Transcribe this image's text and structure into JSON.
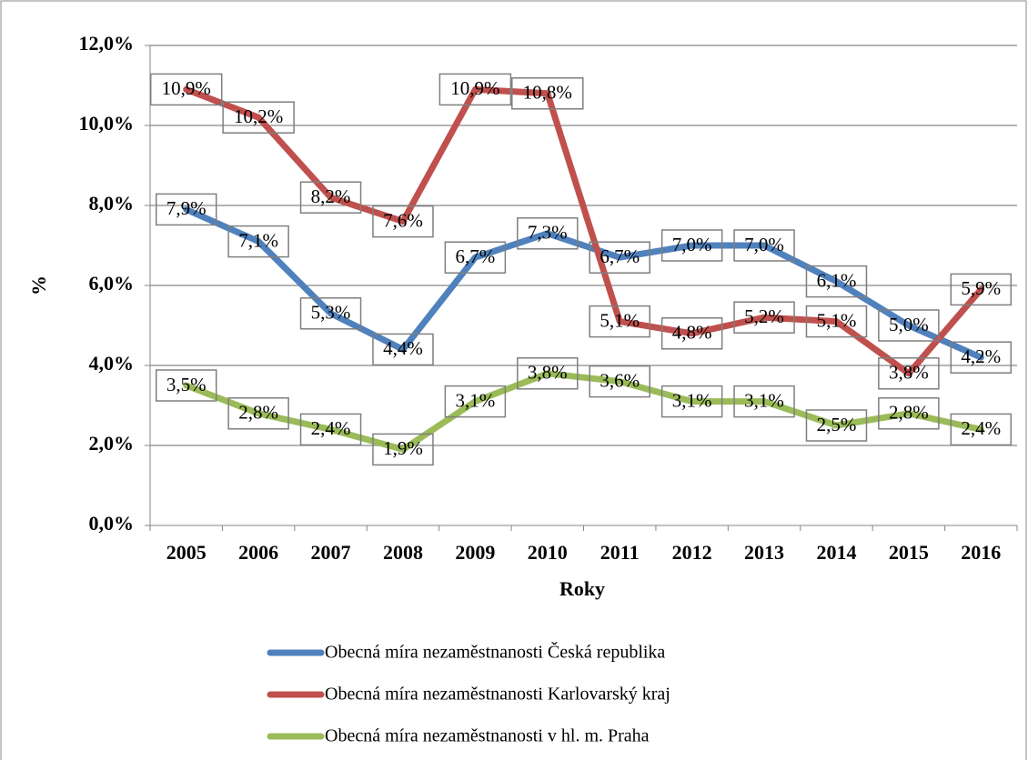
{
  "chart_data": {
    "type": "line",
    "x_label": "Roky",
    "y_label": "%",
    "categories": [
      "2005",
      "2006",
      "2007",
      "2008",
      "2009",
      "2010",
      "2011",
      "2012",
      "2013",
      "2014",
      "2015",
      "2016"
    ],
    "ylim": [
      0,
      12
    ],
    "yticks": [
      {
        "value": 0,
        "label": "0,0%"
      },
      {
        "value": 2,
        "label": "2,0%"
      },
      {
        "value": 4,
        "label": "4,0%"
      },
      {
        "value": 6,
        "label": "6,0%"
      },
      {
        "value": 8,
        "label": "8,0%"
      },
      {
        "value": 10,
        "label": "10,0%"
      },
      {
        "value": 12,
        "label": "12,0%"
      }
    ],
    "grid": true,
    "legend": "bottom",
    "series": [
      {
        "name": "Obecná míra nezaměstnanosti Česká republika",
        "color": "#4f81bd",
        "values": [
          7.9,
          7.1,
          5.3,
          4.4,
          6.7,
          7.3,
          6.7,
          7.0,
          7.0,
          6.1,
          5.0,
          4.2
        ],
        "value_labels": [
          "7,9%",
          "7,1%",
          "5,3%",
          "4,4%",
          "6,7%",
          "7,3%",
          "6,7%",
          "7,0%",
          "7,0%",
          "6,1%",
          "5,0%",
          "4,2%"
        ]
      },
      {
        "name": "Obecná míra nezaměstnanosti Karlovarský kraj",
        "color": "#c0504d",
        "values": [
          10.9,
          10.2,
          8.2,
          7.6,
          10.9,
          10.8,
          5.1,
          4.8,
          5.2,
          5.1,
          3.8,
          5.9
        ],
        "value_labels": [
          "10,9%",
          "10,2%",
          "8,2%",
          "7,6%",
          "10,9%",
          "10,8%",
          "5,1%",
          "4,8%",
          "5,2%",
          "5,1%",
          "3,8%",
          "5,9%"
        ]
      },
      {
        "name": "Obecná míra nezaměstnanosti v hl. m. Praha",
        "color": "#9bbb59",
        "values": [
          3.5,
          2.8,
          2.4,
          1.9,
          3.1,
          3.8,
          3.6,
          3.1,
          3.1,
          2.5,
          2.8,
          2.4
        ],
        "value_labels": [
          "3,5%",
          "2,8%",
          "2,4%",
          "1,9%",
          "3,1%",
          "3,8%",
          "3,6%",
          "3,1%",
          "3,1%",
          "2,5%",
          "2,8%",
          "2,4%"
        ]
      }
    ]
  }
}
